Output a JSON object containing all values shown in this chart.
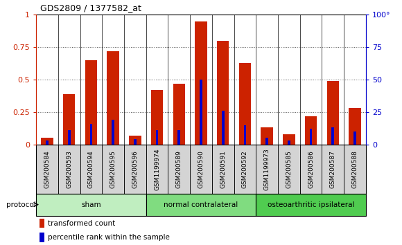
{
  "title": "GDS2809 / 1377582_at",
  "samples": [
    "GSM200584",
    "GSM200593",
    "GSM200594",
    "GSM200595",
    "GSM200596",
    "GSM1199974",
    "GSM200589",
    "GSM200590",
    "GSM200591",
    "GSM200592",
    "GSM1199973",
    "GSM200585",
    "GSM200586",
    "GSM200587",
    "GSM200588"
  ],
  "red_values": [
    0.05,
    0.39,
    0.65,
    0.72,
    0.07,
    0.42,
    0.47,
    0.95,
    0.8,
    0.63,
    0.13,
    0.08,
    0.22,
    0.49,
    0.28
  ],
  "blue_values_pct": [
    3,
    11,
    16,
    19,
    4,
    11,
    11,
    50,
    26,
    15,
    5,
    3,
    12,
    13,
    10
  ],
  "groups": [
    {
      "label": "sham",
      "start": 0,
      "end": 5,
      "color": "#c0eec0"
    },
    {
      "label": "normal contralateral",
      "start": 5,
      "end": 10,
      "color": "#80dc80"
    },
    {
      "label": "osteoarthritic ipsilateral",
      "start": 10,
      "end": 15,
      "color": "#50cc50"
    }
  ],
  "protocol_label": "protocol",
  "red_legend": "transformed count",
  "blue_legend": "percentile rank within the sample",
  "red_color": "#cc2200",
  "blue_color": "#0000cc",
  "red_bar_width": 0.55,
  "blue_bar_width": 0.12,
  "ylim_left": [
    0,
    1.0
  ],
  "ylim_right": [
    0,
    100
  ],
  "yticks_left": [
    0,
    0.25,
    0.5,
    0.75,
    1.0
  ],
  "ytick_labels_left": [
    "0",
    "0.25",
    "0.5",
    "0.75",
    "1"
  ],
  "yticks_right": [
    0,
    25,
    50,
    75,
    100
  ],
  "ytick_labels_right": [
    "0",
    "25",
    "50",
    "75",
    "100°"
  ],
  "grid_color": "#555555",
  "bg_color": "#ffffff",
  "tick_area_bg": "#d4d4d4",
  "plot_bg": "#ffffff"
}
